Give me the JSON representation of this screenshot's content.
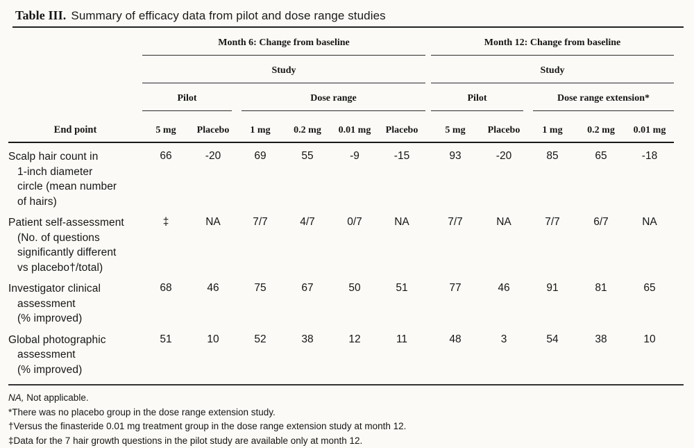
{
  "title": {
    "label": "Table III.",
    "text": "Summary of efficacy data from pilot and dose range studies"
  },
  "table": {
    "endpoint_header": "End point",
    "groups": [
      {
        "title": "Month 6: Change from baseline",
        "study_label": "Study",
        "subgroups": [
          {
            "title": "Pilot"
          },
          {
            "title": "Dose range"
          }
        ]
      },
      {
        "title": "Month 12: Change from baseline",
        "study_label": "Study",
        "subgroups": [
          {
            "title": "Pilot"
          },
          {
            "title": "Dose range extension*"
          }
        ]
      }
    ],
    "column_headers": [
      "5 mg",
      "Placebo",
      "1 mg",
      "0.2 mg",
      "0.01 mg",
      "Placebo",
      "5 mg",
      "Placebo",
      "1 mg",
      "0.2 mg",
      "0.01 mg"
    ],
    "rows": [
      {
        "label": "Scalp hair count in\n1-inch diameter\ncircle (mean number\nof hairs)",
        "values": [
          "66",
          "-20",
          "69",
          "55",
          "-9",
          "-15",
          "93",
          "-20",
          "85",
          "65",
          "-18"
        ]
      },
      {
        "label": "Patient self-assessment\n(No. of questions\nsignificantly different\nvs placebo†/total)",
        "values": [
          "‡",
          "NA",
          "7/7",
          "4/7",
          "0/7",
          "NA",
          "7/7",
          "NA",
          "7/7",
          "6/7",
          "NA"
        ]
      },
      {
        "label": "Investigator clinical\nassessment\n(% improved)",
        "values": [
          "68",
          "46",
          "75",
          "67",
          "50",
          "51",
          "77",
          "46",
          "91",
          "81",
          "65"
        ]
      },
      {
        "label": "Global photographic\nassessment\n(% improved)",
        "values": [
          "51",
          "10",
          "52",
          "38",
          "12",
          "11",
          "48",
          "3",
          "54",
          "38",
          "10"
        ]
      }
    ]
  },
  "footnotes": [
    {
      "marker": "NA,",
      "text": " Not applicable."
    },
    {
      "marker": "*",
      "text": "There was no placebo group in the dose range extension study."
    },
    {
      "marker": "†",
      "text": "Versus the finasteride 0.01 mg treatment group in the dose range extension study at month 12."
    },
    {
      "marker": "‡",
      "text": "Data for the 7 hair growth questions in the pilot study are available only at month 12."
    }
  ]
}
